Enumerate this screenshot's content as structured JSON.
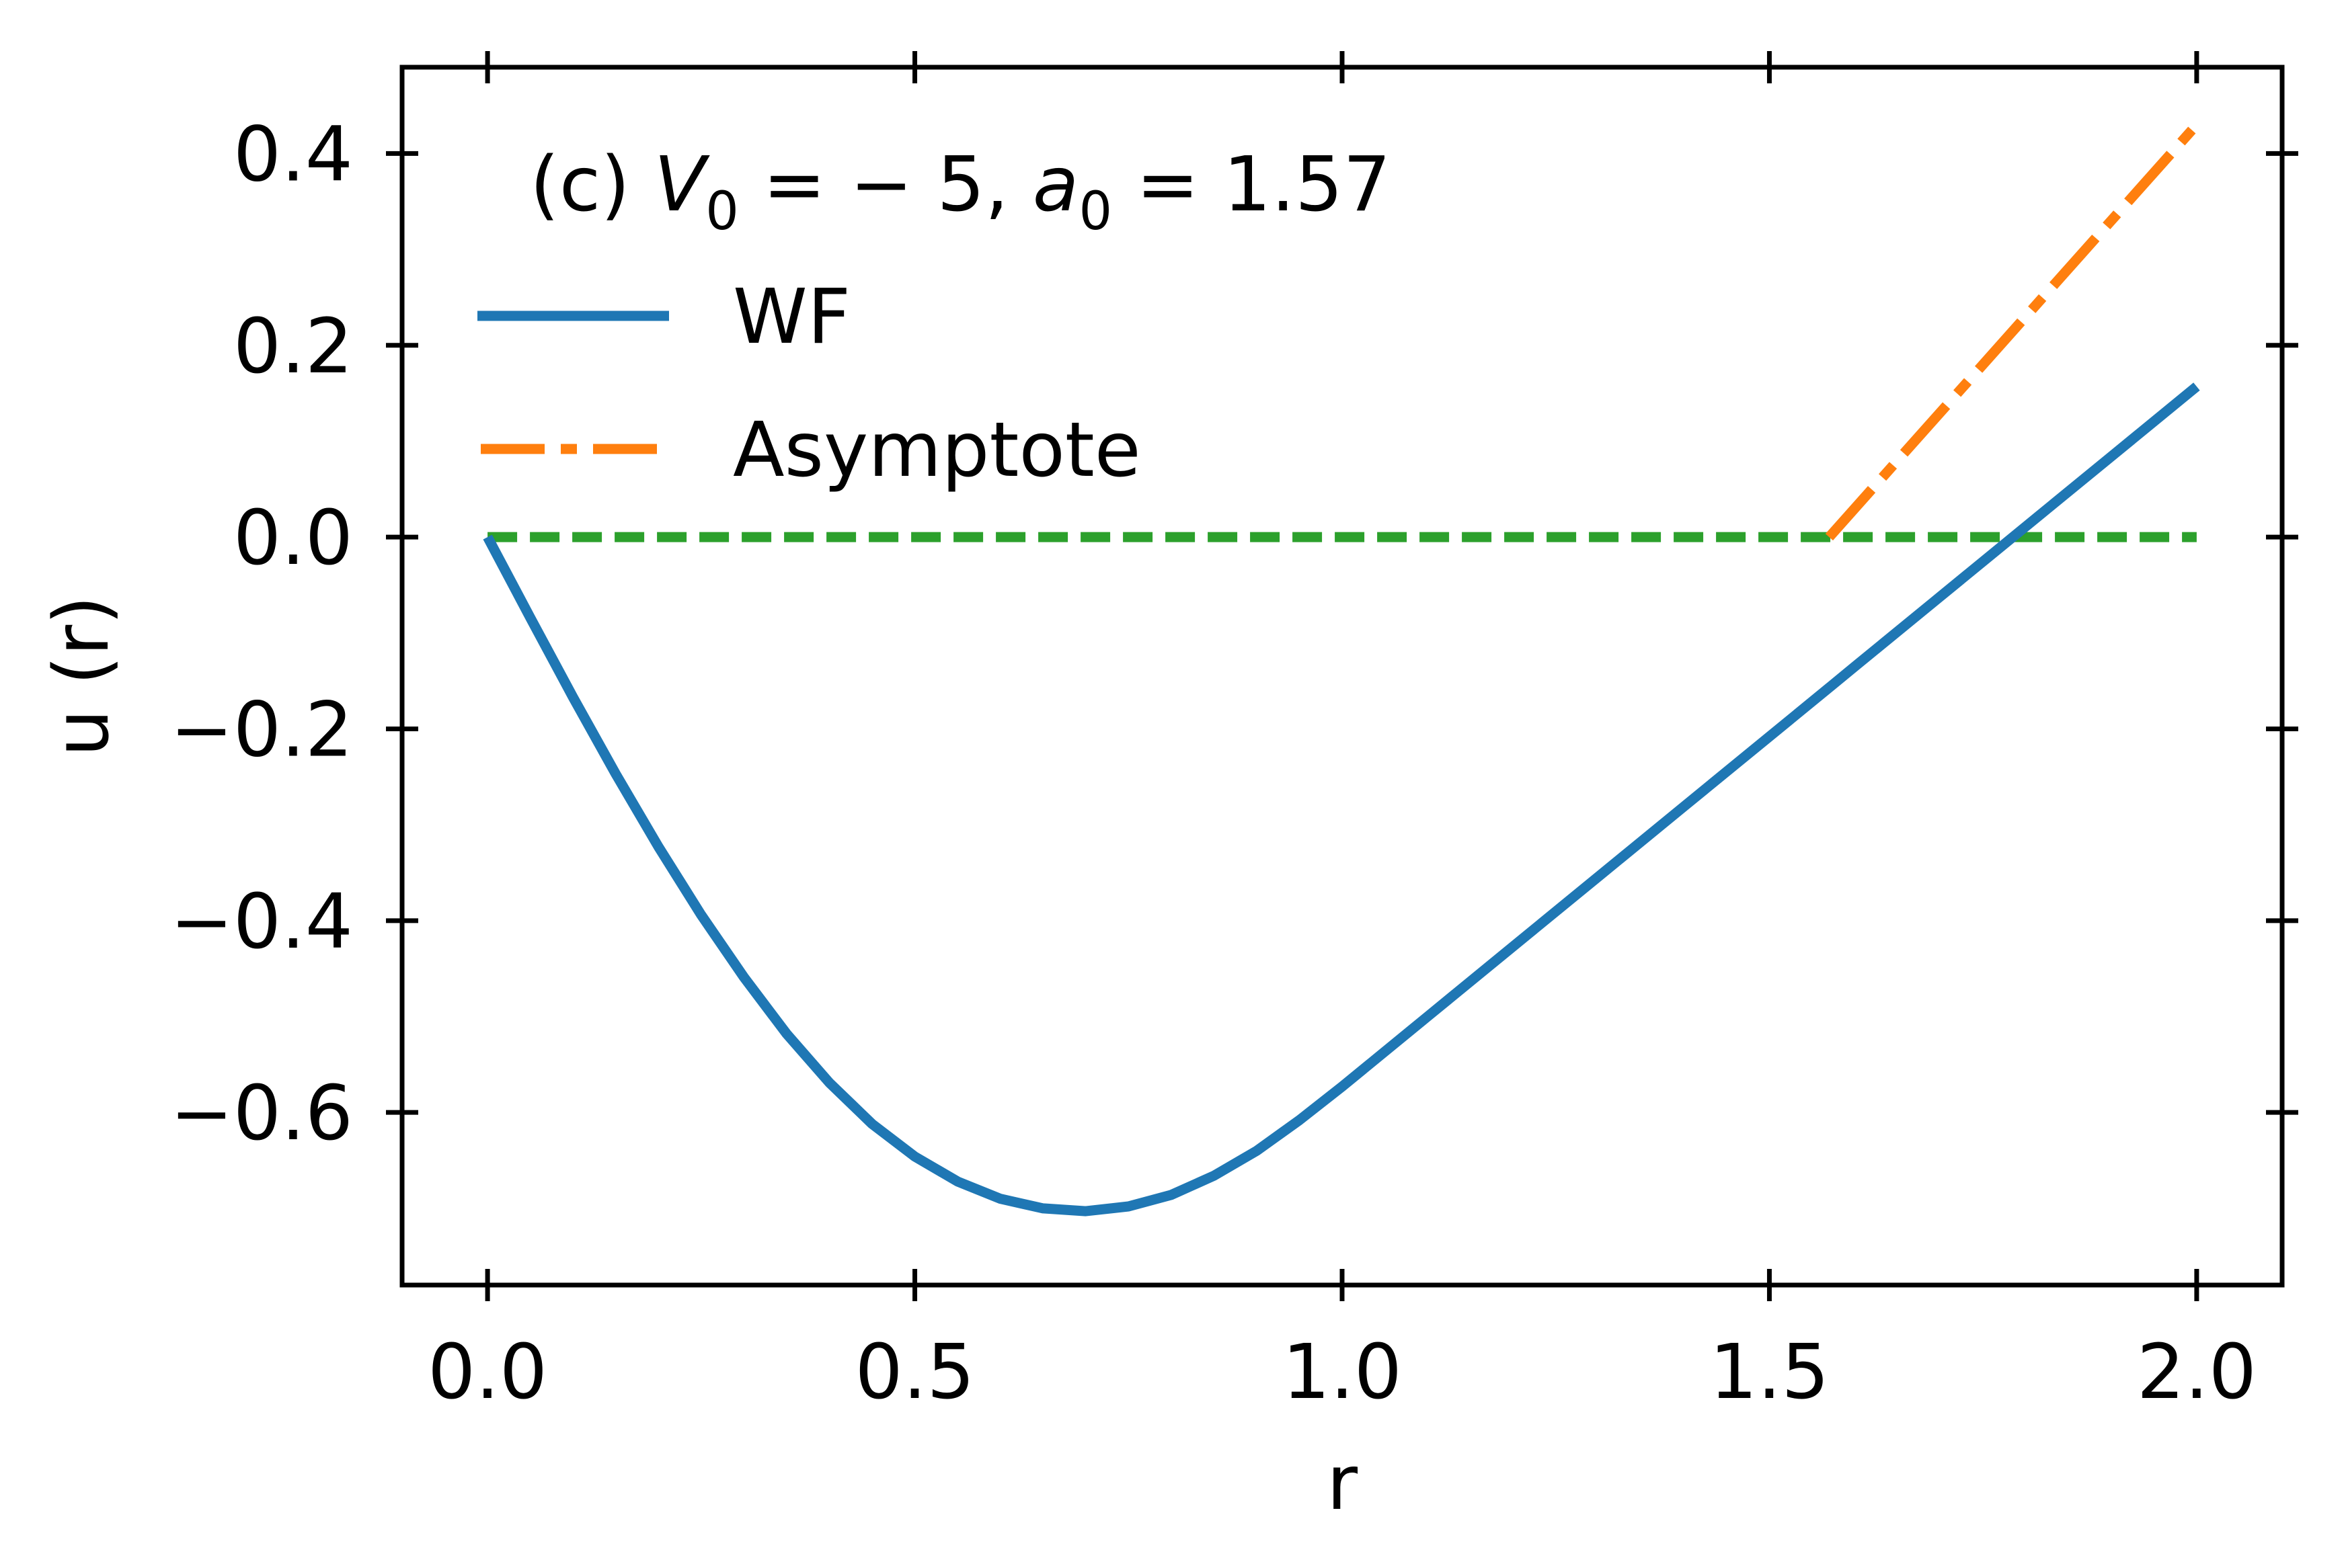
{
  "chart_data": {
    "type": "line",
    "title": "",
    "xlabel": "r",
    "ylabel": "u (r)",
    "xlim": [
      -0.1,
      2.1
    ],
    "ylim": [
      -0.78,
      0.49
    ],
    "xticks": [
      0.0,
      0.5,
      1.0,
      1.5,
      2.0
    ],
    "xtick_labels": [
      "0.0",
      "0.5",
      "1.0",
      "1.5",
      "2.0"
    ],
    "yticks": [
      0.4,
      0.2,
      0.0,
      -0.2,
      -0.4,
      -0.6
    ],
    "ytick_labels": [
      "0.4",
      "0.2",
      "0.0",
      "−0.2",
      "−0.4",
      "−0.6"
    ],
    "annotation": {
      "prefix": "(c) ",
      "v_symbol": "V",
      "v_sub": "0",
      "v_value": " = − 5, ",
      "a_symbol": "a",
      "a_sub": "0",
      "a_value": " = 1.57"
    },
    "legend_position": "top-left",
    "grid": false,
    "series": [
      {
        "name": "WF",
        "color": "#1f77b4",
        "style": "solid",
        "x": [
          0.0,
          0.05,
          0.1,
          0.15,
          0.2,
          0.25,
          0.3,
          0.35,
          0.4,
          0.45,
          0.5,
          0.55,
          0.6,
          0.65,
          0.7,
          0.75,
          0.8,
          0.85,
          0.9,
          0.95,
          1.0,
          1.1,
          1.2,
          1.3,
          1.4,
          1.5,
          1.57,
          1.6,
          1.7,
          1.8,
          1.9,
          2.0
        ],
        "y": [
          0.0,
          -0.084,
          -0.167,
          -0.247,
          -0.323,
          -0.394,
          -0.459,
          -0.518,
          -0.569,
          -0.612,
          -0.646,
          -0.672,
          -0.69,
          -0.7,
          -0.703,
          -0.698,
          -0.686,
          -0.666,
          -0.64,
          -0.608,
          -0.573,
          -0.5,
          -0.427,
          -0.354,
          -0.281,
          -0.208,
          -0.157,
          -0.135,
          -0.062,
          0.011,
          0.084,
          0.157
        ]
      },
      {
        "name": "Asymptote",
        "color": "#ff7f0e",
        "style": "dashdot",
        "x": [
          1.57,
          2.0
        ],
        "y": [
          0.0,
          0.43
        ]
      },
      {
        "name": "",
        "color": "#2ca02c",
        "style": "dashed",
        "x": [
          0.0,
          2.0
        ],
        "y": [
          0.0,
          0.0
        ]
      }
    ]
  }
}
